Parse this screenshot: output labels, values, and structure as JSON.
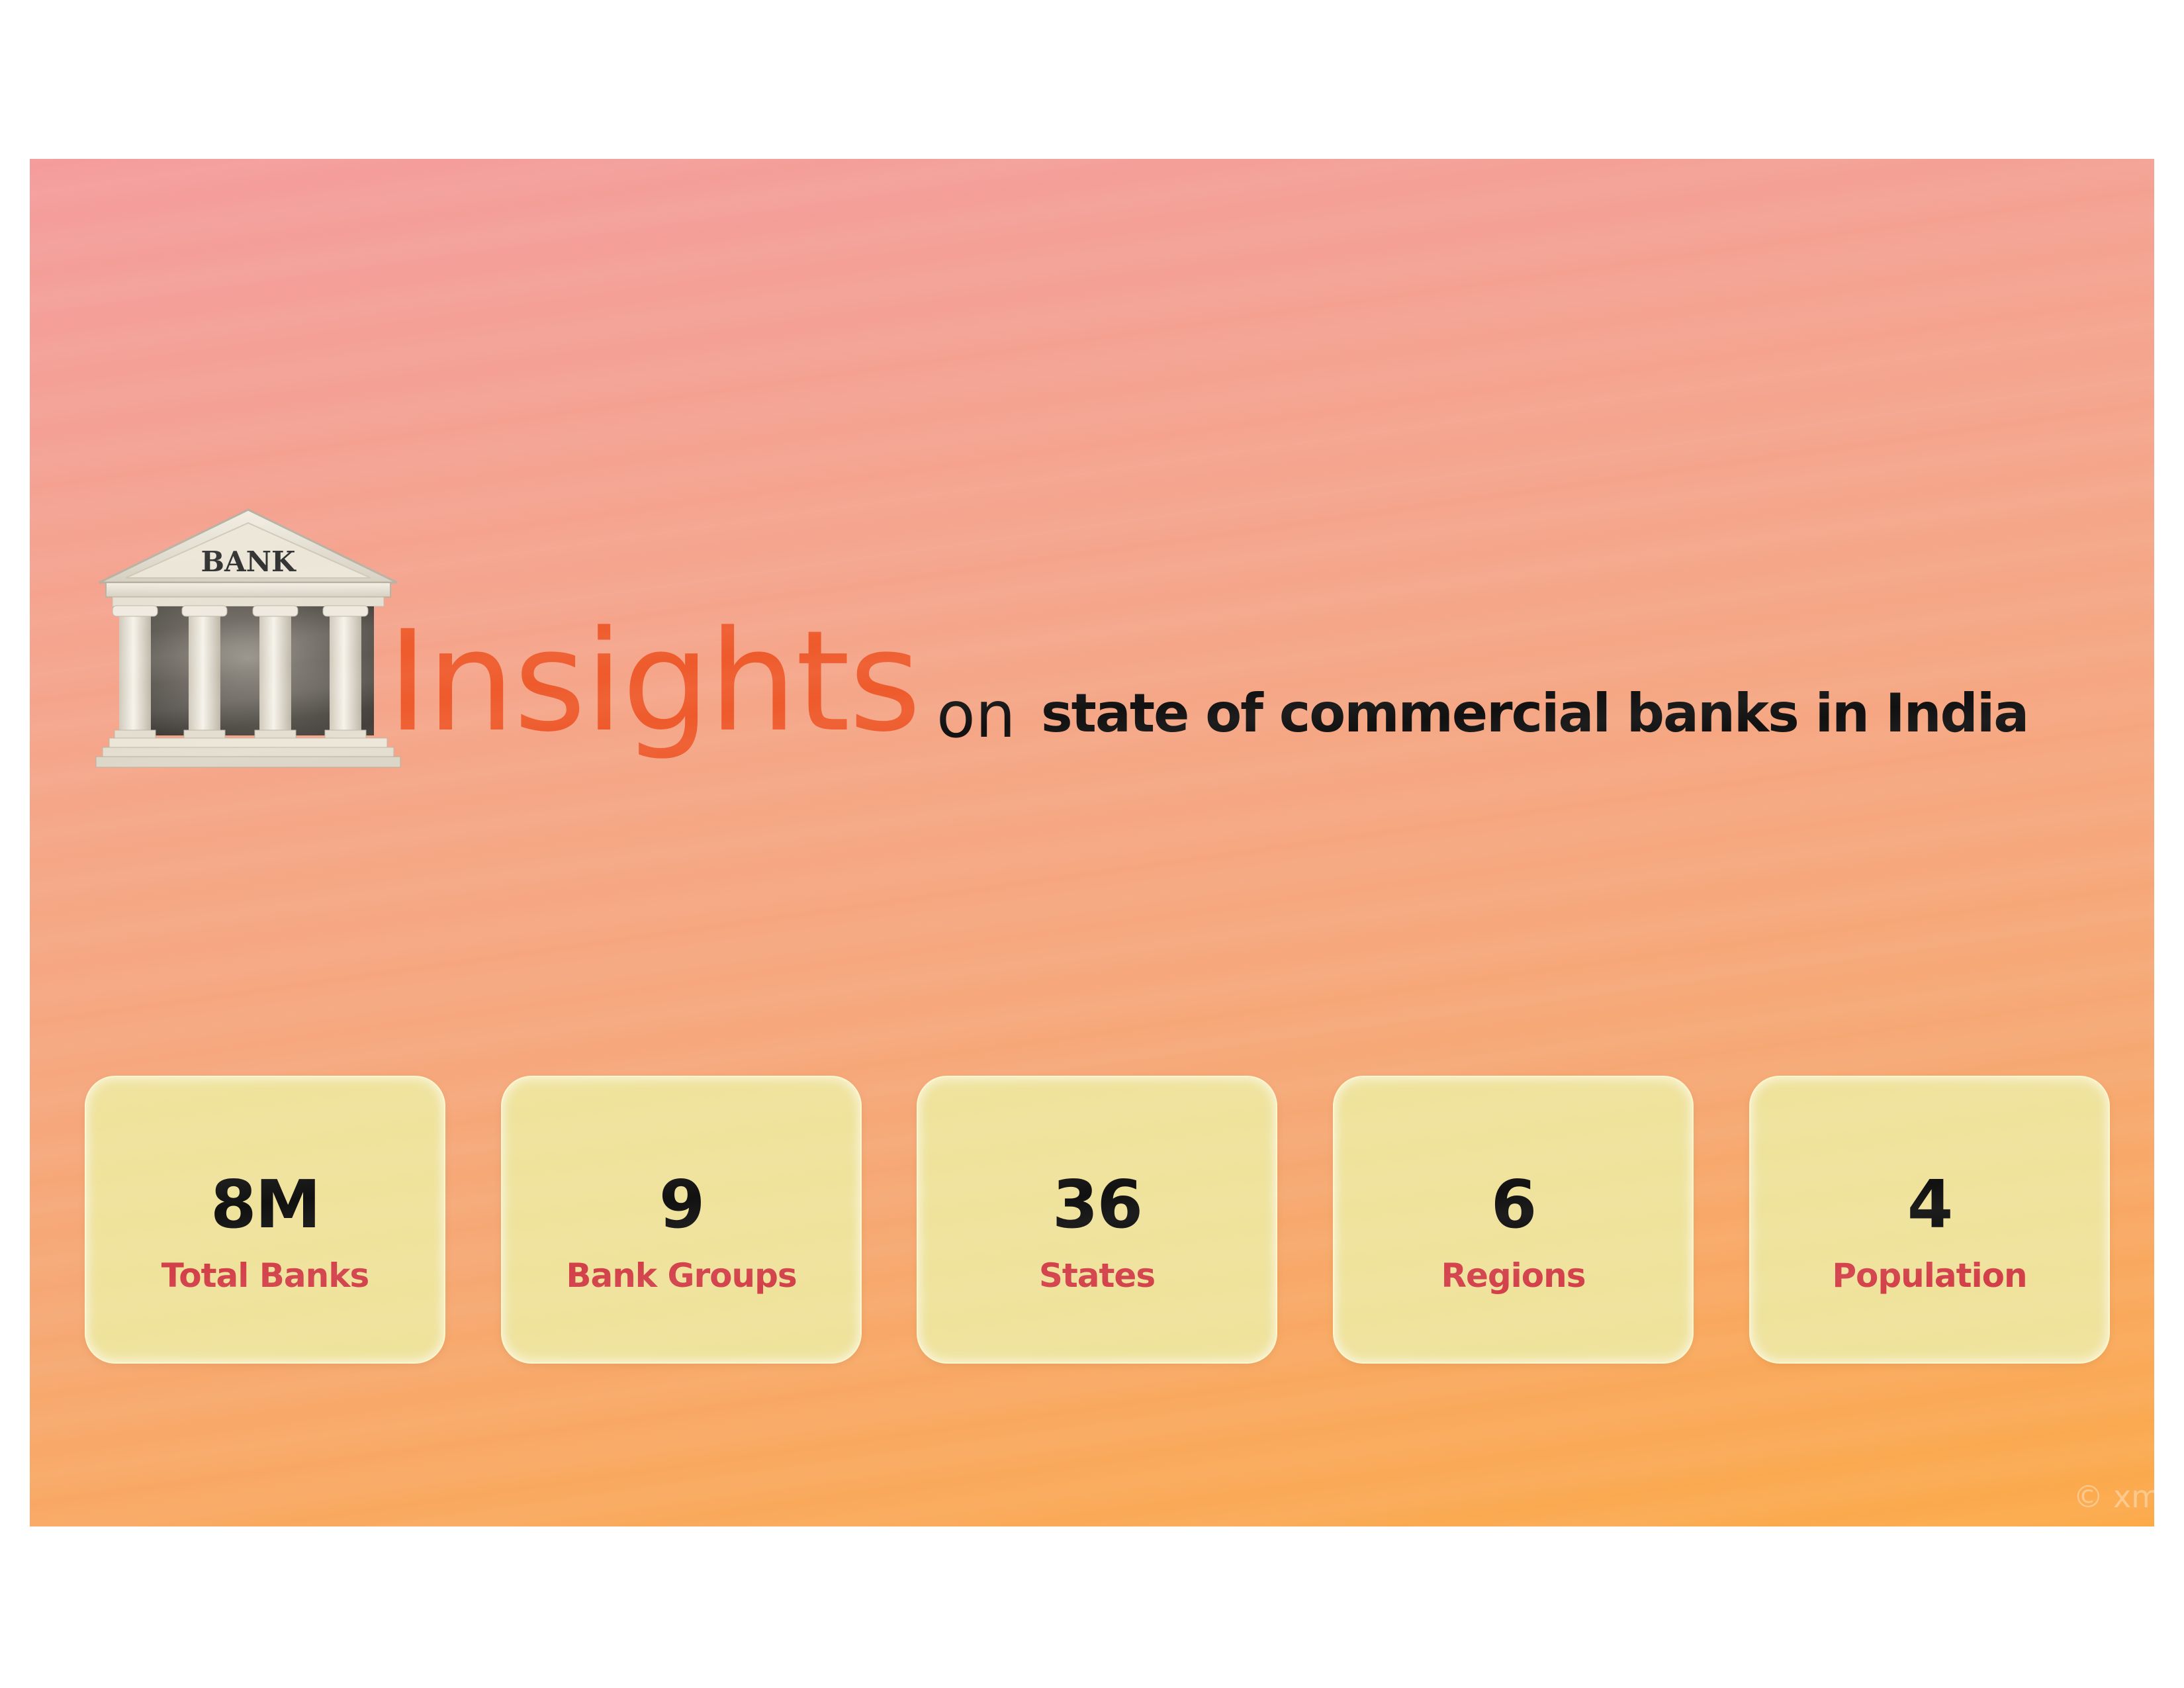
{
  "header": {
    "logo_text": "BANK",
    "title_main": "Insights",
    "title_connector": "on",
    "title_sub": "state of commercial banks in India"
  },
  "kpis": [
    {
      "value": "8M",
      "label": "Total Banks"
    },
    {
      "value": "9",
      "label": "Bank Groups"
    },
    {
      "value": "36",
      "label": "States"
    },
    {
      "value": "6",
      "label": "Regions"
    },
    {
      "value": "4",
      "label": "Population"
    }
  ],
  "watermark": "© xm",
  "colors": {
    "title_accent": "#ee5a2b",
    "card_background": "#efe29b",
    "card_label": "#d23f48",
    "gradient_top": "#f49c9c",
    "gradient_bottom": "#fca948"
  }
}
